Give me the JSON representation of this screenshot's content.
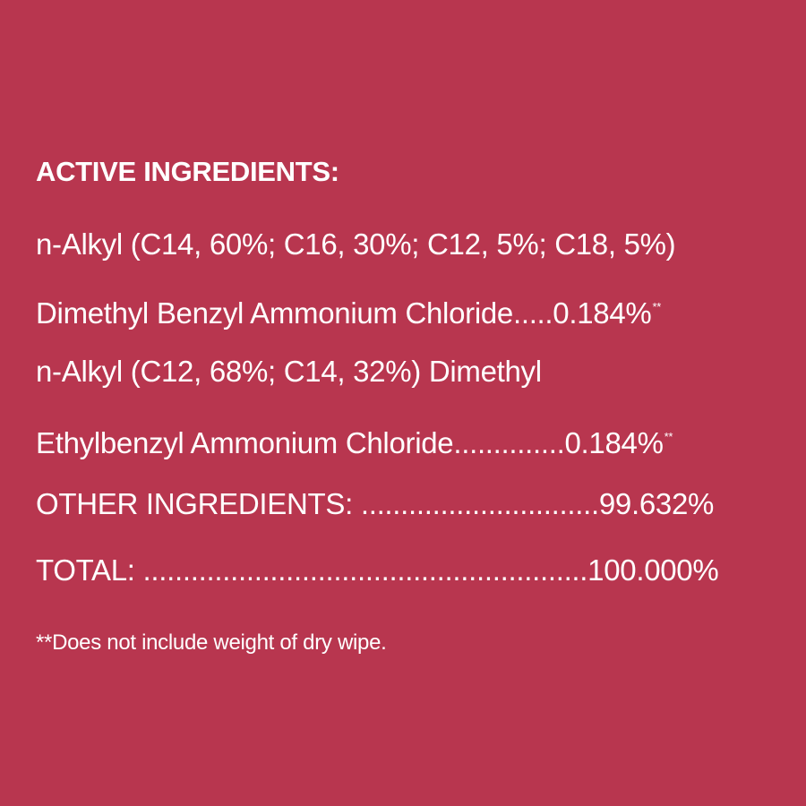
{
  "background_color": "#B8364F",
  "heading": "ACTIVE INGREDIENTS:",
  "lines": [
    {
      "text": "n-Alkyl (C14, 60%; C16, 30%; C12, 5%; C18, 5%)"
    },
    {
      "text": "Dimethyl Benzyl Ammonium Chloride.....0.184%",
      "mark": "**"
    },
    {
      "text": "n-Alkyl (C12, 68%; C14, 32%) Dimethyl"
    },
    {
      "text": "Ethylbenzyl Ammonium Chloride..............0.184%",
      "mark": "**"
    },
    {
      "text": "OTHER INGREDIENTS: ..............................99.632%"
    },
    {
      "text": "TOTAL: ........................................................100.000%"
    }
  ],
  "footnote": "**Does not include weight of dry wipe."
}
